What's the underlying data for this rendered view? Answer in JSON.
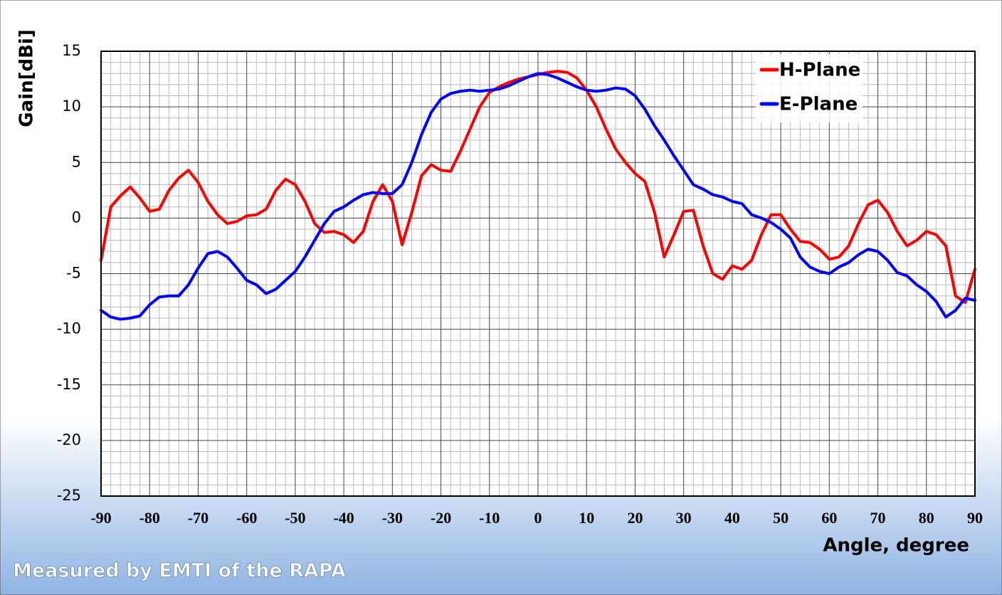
{
  "chart_data": {
    "type": "line",
    "x_label": "Angle, degree",
    "y_label": "Gain[dBi]",
    "footer": "Measured by EMTI of the RAPA",
    "x": [
      -90,
      -88,
      -86,
      -84,
      -82,
      -80,
      -78,
      -76,
      -74,
      -72,
      -70,
      -68,
      -66,
      -64,
      -62,
      -60,
      -58,
      -56,
      -54,
      -52,
      -50,
      -48,
      -46,
      -44,
      -42,
      -40,
      -38,
      -36,
      -34,
      -32,
      -30,
      -28,
      -26,
      -24,
      -22,
      -20,
      -18,
      -16,
      -14,
      -12,
      -10,
      -8,
      -6,
      -4,
      -2,
      0,
      2,
      4,
      6,
      8,
      10,
      12,
      14,
      16,
      18,
      20,
      22,
      24,
      26,
      28,
      30,
      32,
      34,
      36,
      38,
      40,
      42,
      44,
      46,
      48,
      50,
      52,
      54,
      56,
      58,
      60,
      62,
      64,
      66,
      68,
      70,
      72,
      74,
      76,
      78,
      80,
      82,
      84,
      86,
      88,
      90
    ],
    "series": [
      {
        "name": "H-Plane",
        "color": "#ff0000",
        "values": [
          -3.8,
          1,
          2,
          2.8,
          1.8,
          0.6,
          0.8,
          2.5,
          3.6,
          4.3,
          3.2,
          1.5,
          0.3,
          -0.5,
          -0.3,
          0.2,
          0.3,
          0.8,
          2.5,
          3.5,
          3,
          1.5,
          -0.5,
          -1.3,
          -1.2,
          -1.5,
          -2.2,
          -1.2,
          1.5,
          3,
          1.5,
          -2.4,
          0.5,
          3.8,
          4.8,
          4.3,
          4.2,
          6,
          8,
          10,
          11.3,
          11.8,
          12.2,
          12.5,
          12.7,
          12.9,
          13.1,
          13.2,
          13.1,
          12.6,
          11.5,
          10,
          8,
          6.2,
          5,
          4,
          3.3,
          0.5,
          -3.5,
          -1.5,
          0.6,
          0.7,
          -2.5,
          -5,
          -5.5,
          -4.3,
          -4.6,
          -3.8,
          -1.5,
          0.3,
          0.3,
          -1,
          -2.1,
          -2.2,
          -2.8,
          -3.7,
          -3.5,
          -2.5,
          -0.5,
          1.2,
          1.6,
          0.5,
          -1.2,
          -2.5,
          -2,
          -1.2,
          -1.5,
          -2.5,
          -7,
          -7.6,
          -4.6
        ]
      },
      {
        "name": "E-Plane",
        "color": "#0000ff",
        "values": [
          -8.3,
          -8.9,
          -9.1,
          -9,
          -8.8,
          -7.8,
          -7.1,
          -7,
          -7,
          -6,
          -4.5,
          -3.2,
          -3,
          -3.5,
          -4.5,
          -5.6,
          -6,
          -6.8,
          -6.4,
          -5.6,
          -4.8,
          -3.5,
          -2,
          -0.5,
          0.6,
          1,
          1.6,
          2.1,
          2.3,
          2.2,
          2.2,
          3,
          5,
          7.5,
          9.5,
          10.7,
          11.2,
          11.4,
          11.5,
          11.4,
          11.5,
          11.6,
          11.9,
          12.3,
          12.7,
          13,
          12.9,
          12.6,
          12.2,
          11.8,
          11.5,
          11.4,
          11.5,
          11.7,
          11.6,
          11,
          9.8,
          8.3,
          7,
          5.6,
          4.3,
          3,
          2.6,
          2.1,
          1.9,
          1.5,
          1.3,
          0.3,
          0,
          -0.4,
          -1,
          -1.8,
          -3.5,
          -4.4,
          -4.8,
          -5,
          -4.4,
          -4,
          -3.3,
          -2.8,
          -3,
          -3.8,
          -4.9,
          -5.2,
          -6,
          -6.6,
          -7.5,
          -8.9,
          -8.3,
          -7.2,
          -7.4
        ]
      }
    ],
    "xlim": [
      -90,
      90
    ],
    "xticks": [
      -90,
      -80,
      -70,
      -60,
      -50,
      -40,
      -30,
      -20,
      -10,
      0,
      10,
      20,
      30,
      40,
      50,
      60,
      70,
      80,
      90
    ],
    "ylim": [
      -25,
      15
    ],
    "yticks": [
      -25,
      -20,
      -15,
      -10,
      -5,
      0,
      5,
      10,
      15
    ],
    "grid": true,
    "legend": "upper-right"
  }
}
